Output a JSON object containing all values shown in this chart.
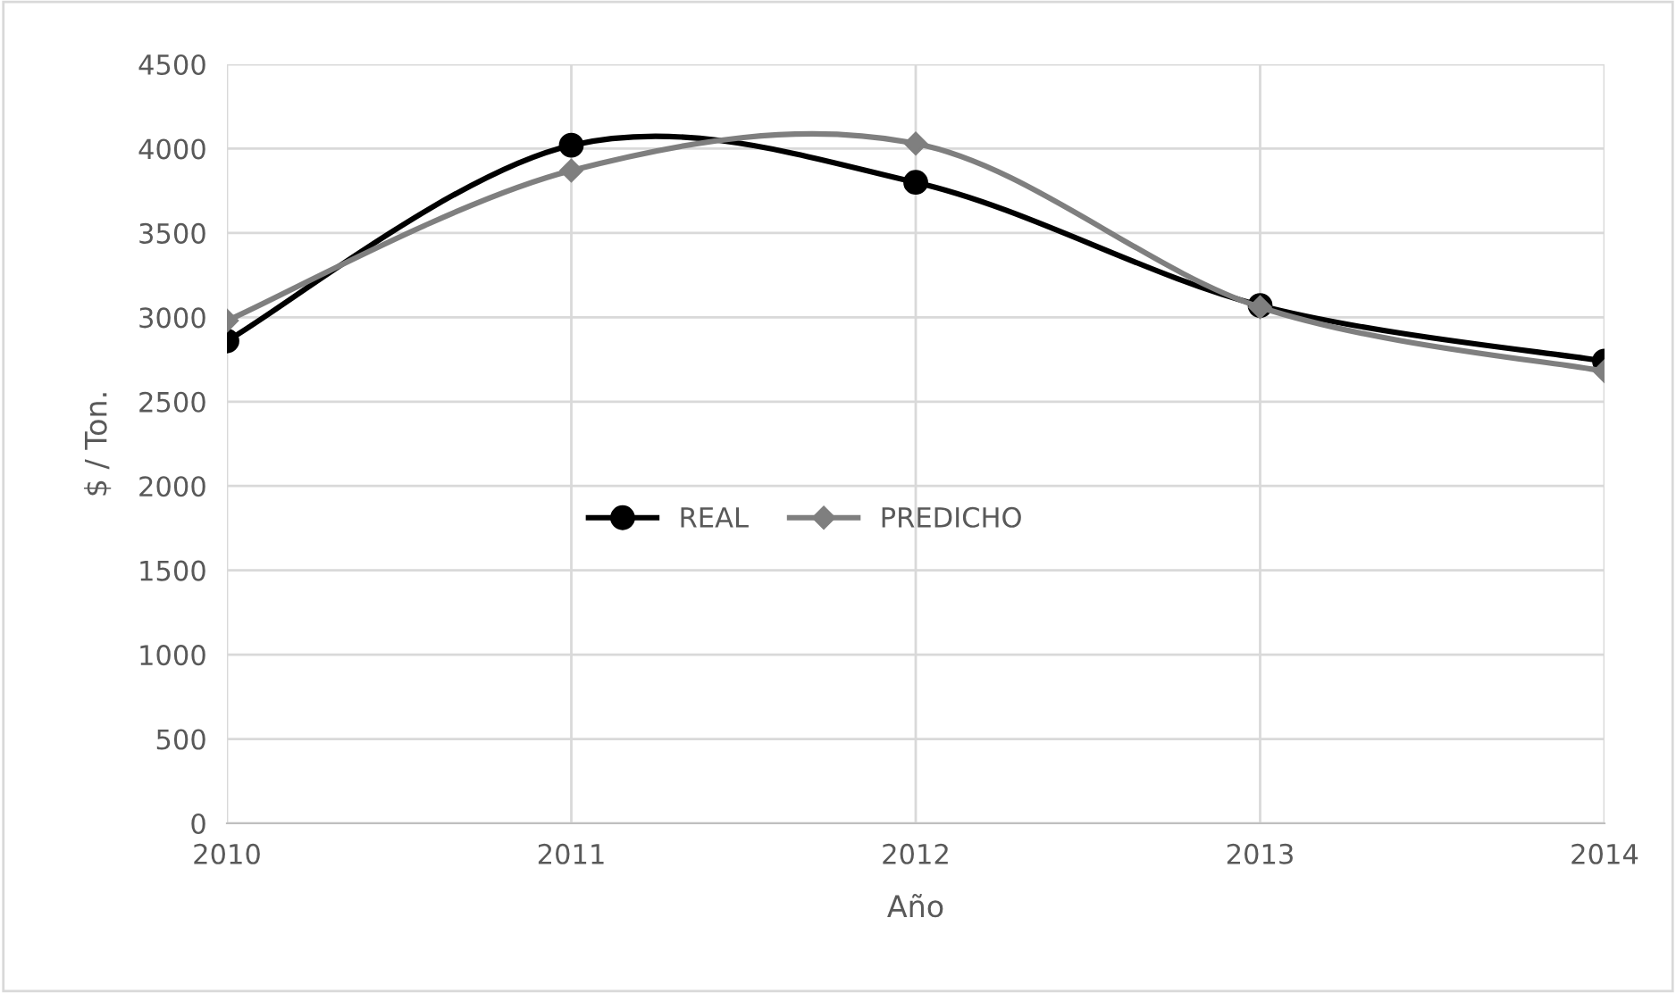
{
  "chart_data": {
    "type": "line",
    "xlabel": "Año",
    "ylabel": "$ / Ton.",
    "x": [
      2010,
      2011,
      2012,
      2013,
      2014
    ],
    "series": [
      {
        "name": "REAL",
        "color": "#000000",
        "marker": "circle",
        "values": [
          2860,
          4020,
          3800,
          3070,
          2740
        ]
      },
      {
        "name": "PREDICHO",
        "color": "#7f7f7f",
        "marker": "diamond",
        "values": [
          2980,
          3870,
          4030,
          3060,
          2680
        ]
      }
    ],
    "xlim": [
      2010,
      2014
    ],
    "xticks": [
      2010,
      2011,
      2012,
      2013,
      2014
    ],
    "ylim": [
      0,
      4500
    ],
    "yticks": [
      0,
      500,
      1000,
      1500,
      2000,
      2500,
      3000,
      3500,
      4000,
      4500
    ],
    "grid": true,
    "legend": "center"
  }
}
